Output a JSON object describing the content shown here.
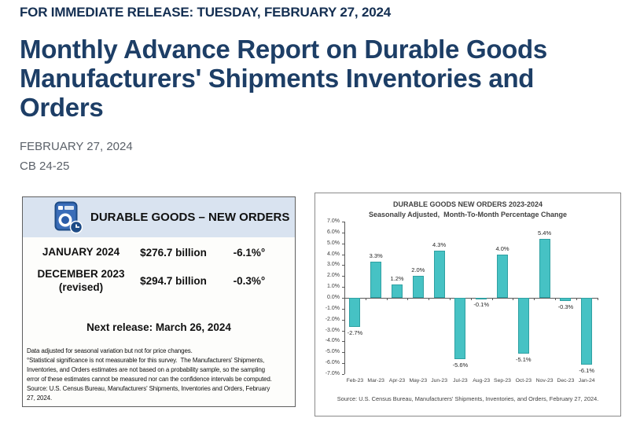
{
  "release_banner": "FOR IMMEDIATE RELEASE: TUESDAY, FEBRUARY 27, 2024",
  "page_title": "Monthly Advance Report on Durable Goods\nManufacturers' Shipments Inventories and\nOrders",
  "release_date": "FEBRUARY 27, 2024",
  "report_number": "CB 24-25",
  "infographic": {
    "header": "DURABLE GOODS – NEW ORDERS",
    "icon": "washing-machine-with-clock-icon",
    "rows": [
      {
        "label": "JANUARY 2024",
        "value": "$276.7 billion",
        "change": "-6.1%°"
      },
      {
        "label": "DECEMBER 2023\n(revised)",
        "value": "$294.7 billion",
        "change": "-0.3%°"
      }
    ],
    "next_release": "Next release: March 26, 2024",
    "footnote": "Data adjusted for seasonal variation but not for price changes.\n°Statistical significance is not measurable for this survey.  The Manufacturers' Shipments,\nInventories, and Orders estimates are not based on a probability sample, so the sampling\nerror of these estimates cannot be measured nor can the confidence intervals be computed.\nSource: U.S. Census Bureau, Manufacturers' Shipments, Inventories and Orders, February\n27, 2024."
  },
  "chart_data": {
    "type": "bar",
    "title": "DURABLE GOODS NEW ORDERS 2023-2024",
    "subtitle": "Seasonally Adjusted,  Month-To-Month Percentage Change",
    "categories": [
      "Feb-23",
      "Mar-23",
      "Apr-23",
      "May-23",
      "Jun-23",
      "Jul-23",
      "Aug-23",
      "Sep-23",
      "Oct-23",
      "Nov-23",
      "Dec-23",
      "Jan-24"
    ],
    "values": [
      -2.7,
      3.3,
      1.2,
      2.0,
      4.3,
      -5.6,
      -0.1,
      4.0,
      -5.1,
      5.4,
      -0.3,
      -6.1
    ],
    "unit": "%",
    "ylim": [
      -7,
      7
    ],
    "ytick_step": 1,
    "grid": "off",
    "legend": "none",
    "bar_color": "#46c2c4",
    "bar_border": "#2fa0a2",
    "source": "Source: U.S. Census Bureau, Manufacturers' Shipments, Inventories, and Orders, February 27, 2024."
  },
  "colors": {
    "heading_navy": "#1d3e66",
    "banner_navy": "#142f52",
    "meta_gray": "#5b6169",
    "card_header_bg": "#d9e3f0",
    "icon_blue": "#3a6db8",
    "icon_dark_blue": "#1d4b86"
  }
}
